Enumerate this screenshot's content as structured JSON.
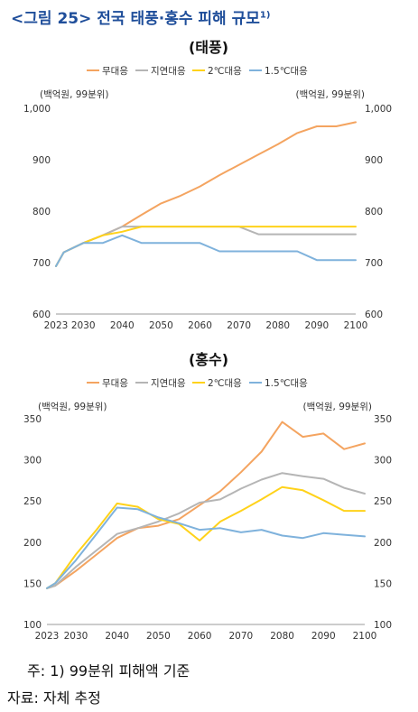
{
  "figure": {
    "title": "<그림 25> 전국 태풍·홍수 피해 규모",
    "title_sup": "1)"
  },
  "notes": {
    "note": "주: 1) 99분위 피해액 기준",
    "source": "자료: 자체 추정"
  },
  "colors": {
    "무대응": "#f4a460",
    "지연대응": "#b5b5b5",
    "2℃대응": "#ffd21a",
    "1.5℃대응": "#7fb2dc"
  },
  "chart_data": [
    {
      "type": "line",
      "title": "(태풍)",
      "unit_left": "(백억원, 99분위)",
      "unit_right": "(백억원, 99분위)",
      "x": [
        2023,
        2025,
        2030,
        2035,
        2040,
        2045,
        2050,
        2055,
        2060,
        2065,
        2070,
        2075,
        2080,
        2085,
        2090,
        2095,
        2100
      ],
      "x_ticks": [
        2023,
        2030,
        2040,
        2050,
        2060,
        2070,
        2080,
        2090,
        2100
      ],
      "ylim": [
        600,
        1000
      ],
      "y_ticks": [
        600,
        700,
        800,
        900,
        1000
      ],
      "y_tick_labels": [
        "600",
        "700",
        "800",
        "900",
        "1,000"
      ],
      "legend_position": "top",
      "series": [
        {
          "name": "무대응",
          "values": [
            693,
            720,
            738,
            753,
            770,
            793,
            815,
            830,
            848,
            870,
            890,
            910,
            930,
            952,
            965,
            965,
            973
          ]
        },
        {
          "name": "지연대응",
          "values": [
            693,
            720,
            738,
            753,
            770,
            770,
            770,
            770,
            770,
            770,
            770,
            755,
            755,
            755,
            755,
            755,
            755
          ]
        },
        {
          "name": "2℃대응",
          "values": [
            693,
            720,
            738,
            753,
            760,
            770,
            770,
            770,
            770,
            770,
            770,
            770,
            770,
            770,
            770,
            770,
            770
          ]
        },
        {
          "name": "1.5℃대응",
          "values": [
            693,
            720,
            738,
            738,
            753,
            738,
            738,
            738,
            738,
            722,
            722,
            722,
            722,
            722,
            705,
            705,
            705
          ]
        }
      ]
    },
    {
      "type": "line",
      "title": "(홍수)",
      "unit_left": "(백억원, 99분위)",
      "unit_right": "(백억원, 99분위)",
      "x": [
        2023,
        2025,
        2030,
        2035,
        2040,
        2045,
        2050,
        2055,
        2060,
        2065,
        2070,
        2075,
        2080,
        2085,
        2090,
        2095,
        2100
      ],
      "x_ticks": [
        2023,
        2030,
        2040,
        2050,
        2060,
        2070,
        2080,
        2090,
        2100
      ],
      "ylim": [
        100,
        350
      ],
      "y_ticks": [
        100,
        150,
        200,
        250,
        300,
        350
      ],
      "y_tick_labels": [
        "100",
        "150",
        "200",
        "250",
        "300",
        "350"
      ],
      "legend_position": "top",
      "series": [
        {
          "name": "무대응",
          "values": [
            144,
            147,
            165,
            185,
            205,
            217,
            220,
            228,
            245,
            262,
            285,
            310,
            346,
            328,
            332,
            313,
            320
          ]
        },
        {
          "name": "지연대응",
          "values": [
            144,
            147,
            170,
            190,
            210,
            217,
            225,
            235,
            248,
            252,
            265,
            276,
            284,
            280,
            277,
            266,
            259
          ]
        },
        {
          "name": "2℃대응",
          "values": [
            144,
            150,
            185,
            215,
            247,
            243,
            228,
            222,
            202,
            225,
            238,
            252,
            267,
            263,
            251,
            238,
            238
          ]
        },
        {
          "name": "1.5℃대응",
          "values": [
            144,
            150,
            178,
            210,
            242,
            240,
            230,
            223,
            215,
            217,
            212,
            215,
            208,
            205,
            211,
            209,
            207
          ]
        }
      ]
    }
  ]
}
